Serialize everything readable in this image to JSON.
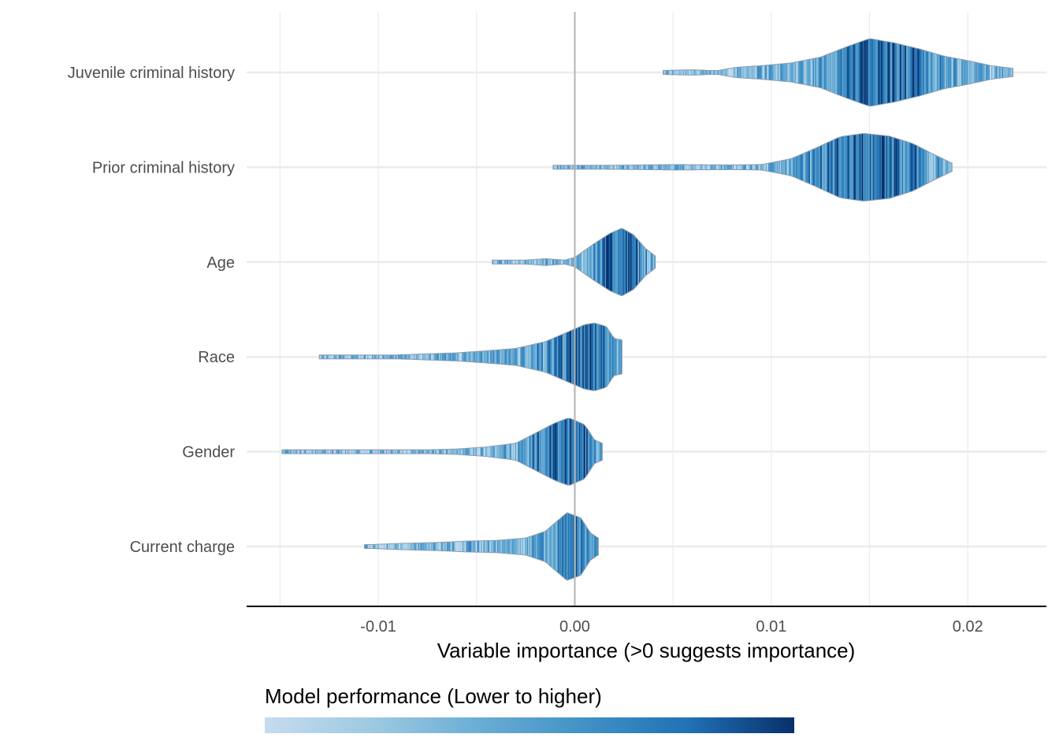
{
  "chart_data": {
    "type": "violin",
    "title": "",
    "xlabel": "Variable importance (>0 suggests importance)",
    "ylabel": "",
    "xlim": [
      -0.0167,
      0.024
    ],
    "x_ticks": [
      -0.01,
      0.0,
      0.01,
      0.02
    ],
    "x_tick_labels": [
      "-0.01",
      "0.00",
      "0.01",
      "0.02"
    ],
    "reference_line_x": 0,
    "grid": true,
    "categories": [
      "Juvenile criminal history",
      "Prior criminal history",
      "Age",
      "Race",
      "Gender",
      "Current charge"
    ],
    "series": [
      {
        "category": "Juvenile criminal history",
        "min": 0.0045,
        "max": 0.0223,
        "density": [
          [
            0.0045,
            0.06
          ],
          [
            0.006,
            0.08
          ],
          [
            0.0072,
            0.05
          ],
          [
            0.0082,
            0.15
          ],
          [
            0.0095,
            0.2
          ],
          [
            0.011,
            0.28
          ],
          [
            0.0125,
            0.45
          ],
          [
            0.0138,
            0.75
          ],
          [
            0.015,
            1.0
          ],
          [
            0.0162,
            0.88
          ],
          [
            0.0175,
            0.7
          ],
          [
            0.0188,
            0.48
          ],
          [
            0.02,
            0.35
          ],
          [
            0.0212,
            0.2
          ],
          [
            0.0223,
            0.12
          ]
        ]
      },
      {
        "category": "Prior criminal history",
        "min": -0.0011,
        "max": 0.0192,
        "density": [
          [
            -0.0011,
            0.05
          ],
          [
            0.002,
            0.06
          ],
          [
            0.005,
            0.08
          ],
          [
            0.008,
            0.07
          ],
          [
            0.0095,
            0.08
          ],
          [
            0.011,
            0.25
          ],
          [
            0.0122,
            0.55
          ],
          [
            0.0135,
            0.9
          ],
          [
            0.0147,
            1.0
          ],
          [
            0.016,
            0.92
          ],
          [
            0.0172,
            0.7
          ],
          [
            0.0182,
            0.4
          ],
          [
            0.0192,
            0.12
          ]
        ]
      },
      {
        "category": "Age",
        "min": -0.0042,
        "max": 0.0041,
        "density": [
          [
            -0.0042,
            0.04
          ],
          [
            -0.0025,
            0.06
          ],
          [
            -0.0015,
            0.1
          ],
          [
            -0.0005,
            0.06
          ],
          [
            0.0,
            0.14
          ],
          [
            0.001,
            0.55
          ],
          [
            0.0018,
            0.85
          ],
          [
            0.0024,
            1.0
          ],
          [
            0.003,
            0.8
          ],
          [
            0.0036,
            0.4
          ],
          [
            0.0041,
            0.18
          ]
        ]
      },
      {
        "category": "Race",
        "min": -0.013,
        "max": 0.0024,
        "density": [
          [
            -0.013,
            0.02
          ],
          [
            -0.01,
            0.04
          ],
          [
            -0.008,
            0.08
          ],
          [
            -0.006,
            0.12
          ],
          [
            -0.0045,
            0.18
          ],
          [
            -0.003,
            0.25
          ],
          [
            -0.0015,
            0.45
          ],
          [
            -0.0005,
            0.7
          ],
          [
            0.0005,
            0.95
          ],
          [
            0.001,
            1.0
          ],
          [
            0.0016,
            0.9
          ],
          [
            0.002,
            0.55
          ],
          [
            0.0024,
            0.5
          ]
        ]
      },
      {
        "category": "Gender",
        "min": -0.0149,
        "max": 0.0014,
        "density": [
          [
            -0.0149,
            0.02
          ],
          [
            -0.012,
            0.03
          ],
          [
            -0.01,
            0.04
          ],
          [
            -0.008,
            0.05
          ],
          [
            -0.006,
            0.08
          ],
          [
            -0.0045,
            0.14
          ],
          [
            -0.003,
            0.25
          ],
          [
            -0.002,
            0.55
          ],
          [
            -0.001,
            0.85
          ],
          [
            -0.0003,
            1.0
          ],
          [
            0.0005,
            0.8
          ],
          [
            0.001,
            0.35
          ],
          [
            0.0014,
            0.25
          ]
        ]
      },
      {
        "category": "Current charge",
        "min": -0.0107,
        "max": 0.0012,
        "density": [
          [
            -0.0107,
            0.05
          ],
          [
            -0.009,
            0.09
          ],
          [
            -0.007,
            0.12
          ],
          [
            -0.0055,
            0.16
          ],
          [
            -0.004,
            0.18
          ],
          [
            -0.0025,
            0.25
          ],
          [
            -0.0015,
            0.45
          ],
          [
            -0.0008,
            0.8
          ],
          [
            -0.0004,
            1.0
          ],
          [
            0.0003,
            0.85
          ],
          [
            0.0008,
            0.4
          ],
          [
            0.0012,
            0.25
          ]
        ]
      }
    ],
    "legend": {
      "title": "Model performance (Lower to higher)",
      "placement": "bottom-left",
      "colors": [
        "#c6dbef",
        "#9ecae1",
        "#6baed6",
        "#4292c6",
        "#2171b5",
        "#08306b"
      ]
    },
    "colors": {
      "grid": "#ebebeb",
      "reference_line": "#b3b3b3",
      "axis": "#000000",
      "violin_outline": "#8a9bb0"
    }
  }
}
